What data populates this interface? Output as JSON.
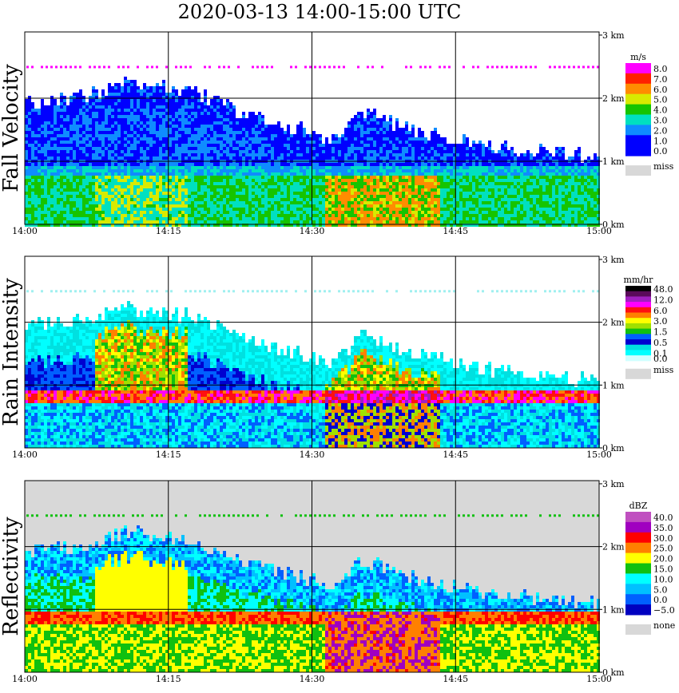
{
  "title": "2020-03-13   14:00-15:00 UTC",
  "chart_data": [
    {
      "type": "heatmap",
      "ylabel": "Fall Velocity",
      "unit": "m/s",
      "x_ticks": [
        "14:00",
        "14:15",
        "14:30",
        "14:45",
        "15:00"
      ],
      "y_ticks": [
        "0 km",
        "1 km",
        "2 km",
        "3 km"
      ],
      "ylim": [
        0,
        3
      ],
      "legend": [
        {
          "label": "8.0",
          "color": "#ff00ff"
        },
        {
          "label": "7.0",
          "color": "#ff2000"
        },
        {
          "label": "6.0",
          "color": "#ff8c00"
        },
        {
          "label": "5.0",
          "color": "#d8ea00"
        },
        {
          "label": "4.0",
          "color": "#16c400"
        },
        {
          "label": "3.0",
          "color": "#00e0c0"
        },
        {
          "label": "2.0",
          "color": "#0f8cff"
        },
        {
          "label": "1.0",
          "color": "#0000ff"
        },
        {
          "label": "0.0",
          "color": "#0000ff"
        }
      ],
      "missing_label": "miss",
      "missing_color": "#d8d8d8",
      "cloud_top_km": [
        1.95,
        2.0,
        2.1,
        2.25,
        2.2,
        2.1,
        1.9,
        1.7,
        1.55,
        1.4,
        1.8,
        1.6,
        1.45,
        1.35,
        1.25,
        1.2,
        1.15,
        1.1
      ],
      "melting_layer_km": 0.85
    },
    {
      "type": "heatmap",
      "ylabel": "Rain Intensity",
      "unit": "mm/hr",
      "x_ticks": [
        "14:00",
        "14:15",
        "14:30",
        "14:45",
        "15:00"
      ],
      "y_ticks": [
        "0 km",
        "1 km",
        "2 km",
        "3 km"
      ],
      "ylim": [
        0,
        3
      ],
      "legend": [
        {
          "label": "48.0",
          "color": "#000000"
        },
        {
          "label": "",
          "color": "#5a0a5a"
        },
        {
          "label": "12.0",
          "color": "#a020c0"
        },
        {
          "label": "",
          "color": "#ff00ff"
        },
        {
          "label": "6.0",
          "color": "#ff1010"
        },
        {
          "label": "",
          "color": "#ff8000"
        },
        {
          "label": "3.0",
          "color": "#ffff00"
        },
        {
          "label": "",
          "color": "#a0e000"
        },
        {
          "label": "1.5",
          "color": "#10c010"
        },
        {
          "label": "",
          "color": "#0060ff"
        },
        {
          "label": "0.5",
          "color": "#0000d0"
        },
        {
          "label": "",
          "color": "#00e0e0"
        },
        {
          "label": "0.1",
          "color": "#00ffff"
        },
        {
          "label": "0.0",
          "color": "#d0ffff"
        }
      ],
      "missing_label": "miss",
      "missing_color": "#d8d8d8",
      "melting_layer_km": 0.85
    },
    {
      "type": "heatmap",
      "ylabel": "Reflectivity",
      "unit": "dBZ",
      "x_ticks": [
        "14:00",
        "14:15",
        "14:30",
        "14:45",
        "15:00"
      ],
      "y_ticks": [
        "0 km",
        "1 km",
        "2 km",
        "3 km"
      ],
      "ylim": [
        0,
        3
      ],
      "legend": [
        {
          "label": "40.0",
          "color": "#c050c0"
        },
        {
          "label": "35.0",
          "color": "#a000c0"
        },
        {
          "label": "30.0",
          "color": "#ff0000"
        },
        {
          "label": "25.0",
          "color": "#ff8000"
        },
        {
          "label": "20.0",
          "color": "#ffff00"
        },
        {
          "label": "15.0",
          "color": "#10c010"
        },
        {
          "label": "10.0",
          "color": "#00ffff"
        },
        {
          "label": "5.0",
          "color": "#00c0ff"
        },
        {
          "label": "0.0",
          "color": "#0060ff"
        },
        {
          "label": "−5.0",
          "color": "#0000c0"
        }
      ],
      "missing_label": "none",
      "missing_color": "#d8d8d8",
      "melting_layer_km": 0.85
    }
  ]
}
